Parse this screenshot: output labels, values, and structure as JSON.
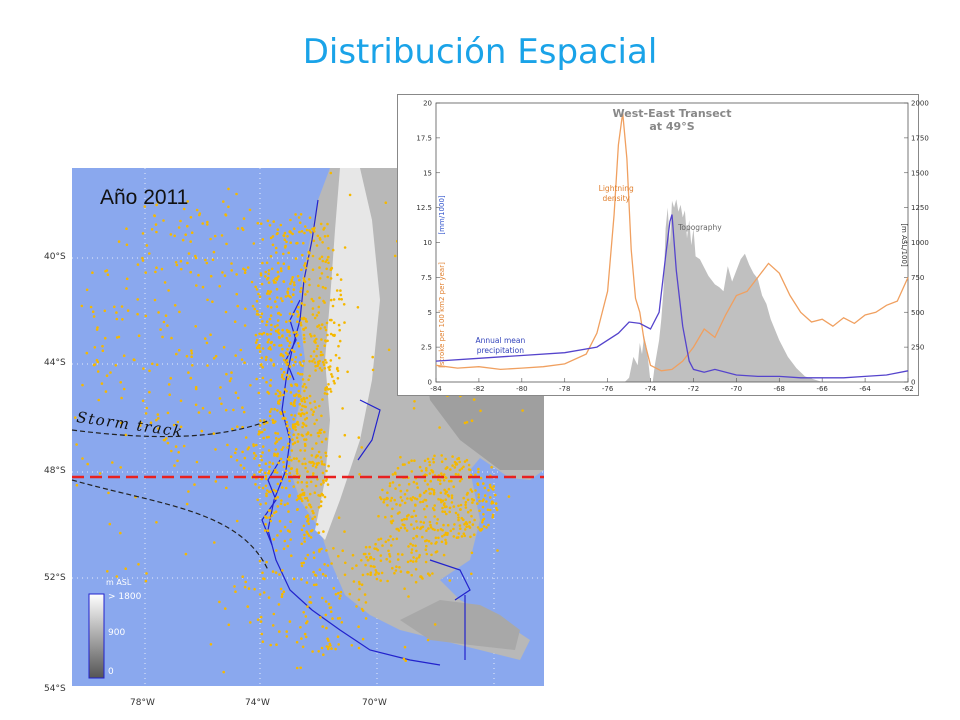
{
  "title": "Distribución Espacial",
  "map": {
    "year_label": "Año 2011",
    "storm_track_label": "Storm track",
    "lat_labels": [
      "40°S",
      "44°S",
      "48°S",
      "52°S",
      "54°S"
    ],
    "lon_labels": [
      "78°W",
      "74°W",
      "70°W"
    ],
    "legend": {
      "unit": "m ASL",
      "ticks": [
        "> 1800",
        "900",
        "0"
      ]
    },
    "colors": {
      "ocean": "#8aa8ee",
      "lightning": "#f5b800",
      "coast": "#2222cc",
      "transect_line": "#e82020"
    }
  },
  "chart_data": {
    "type": "line",
    "title": "West-East Transect at 49°S",
    "title_lines": [
      "West-East Transect",
      "at 49°S"
    ],
    "x_ticks": [
      -84,
      -82,
      -80,
      -78,
      -76,
      -74,
      -72,
      -70,
      -68,
      -66,
      -64,
      -62
    ],
    "xlim": [
      -84,
      -62
    ],
    "y_left": {
      "ylim": [
        0,
        20
      ],
      "ticks": [
        "0",
        "2.5",
        "5",
        "7.5",
        "10",
        "12.5",
        "15",
        "17.5",
        "20"
      ],
      "label_precip": "[mm/1000]",
      "label_lightning": "[stroke per 100 km2 per year]"
    },
    "y_right": {
      "ylim": [
        0,
        2000
      ],
      "ticks": [
        "0",
        "250",
        "500",
        "750",
        "1000",
        "1250",
        "1500",
        "1750",
        "2000"
      ],
      "label": "[m ASL/100]"
    },
    "series": [
      {
        "name": "Lightning density",
        "label_lines": [
          "Lightning",
          "density"
        ],
        "color": "#f0a060",
        "x": [
          -84,
          -83,
          -82,
          -81,
          -80,
          -79,
          -78,
          -77,
          -76.5,
          -76,
          -75.7,
          -75.5,
          -75.3,
          -75.1,
          -74.9,
          -74.7,
          -74.5,
          -74.3,
          -74,
          -73.5,
          -73,
          -72.5,
          -72,
          -71.5,
          -71,
          -70.5,
          -70,
          -69.5,
          -69,
          -68.5,
          -68,
          -67.5,
          -67,
          -66.5,
          -66,
          -65.5,
          -65,
          -64.5,
          -64,
          -63.5,
          -63,
          -62.5,
          -62
        ],
        "y": [
          1.2,
          1.0,
          1.1,
          0.9,
          1.0,
          1.1,
          1.3,
          2.0,
          3.5,
          6.5,
          12.0,
          17.0,
          19.3,
          16.0,
          9.5,
          6.0,
          5.0,
          3.0,
          1.2,
          0.8,
          0.9,
          1.5,
          2.5,
          3.8,
          3.2,
          4.8,
          6.2,
          6.5,
          7.5,
          8.5,
          7.8,
          6.2,
          5.0,
          4.3,
          4.5,
          4.0,
          4.6,
          4.2,
          4.8,
          5.0,
          5.5,
          5.8,
          7.5
        ]
      },
      {
        "name": "Annual mean precipitation",
        "label_lines": [
          "Annual mean",
          "precipitation"
        ],
        "color": "#5544cc",
        "x": [
          -84,
          -82,
          -80,
          -78,
          -76.5,
          -75.5,
          -75,
          -74.5,
          -74,
          -73.6,
          -73.3,
          -73.1,
          -73,
          -72.8,
          -72.5,
          -72.2,
          -72,
          -71.5,
          -71,
          -70,
          -69,
          -68,
          -67,
          -66,
          -65,
          -64,
          -63,
          -62
        ],
        "y": [
          1.5,
          1.7,
          1.9,
          2.1,
          2.5,
          3.5,
          4.3,
          4.2,
          3.8,
          5.0,
          9.0,
          11.5,
          12.0,
          8.0,
          4.0,
          1.5,
          0.9,
          0.7,
          0.9,
          0.5,
          0.4,
          0.4,
          0.3,
          0.3,
          0.3,
          0.4,
          0.5,
          0.8
        ]
      },
      {
        "name": "Topography",
        "type": "area",
        "color": "#c0c0c0",
        "x": [
          -75.2,
          -75,
          -74.8,
          -74.6,
          -74.5,
          -74.4,
          -74.3,
          -74.2,
          -74.1,
          -74,
          -73.9,
          -73.8,
          -73.6,
          -73.5,
          -73.4,
          -73.3,
          -73.2,
          -73.1,
          -73,
          -72.9,
          -72.8,
          -72.7,
          -72.6,
          -72.5,
          -72.4,
          -72.3,
          -72.2,
          -72.1,
          -72,
          -71.9,
          -71.7,
          -71.5,
          -71.3,
          -71,
          -70.8,
          -70.6,
          -70.4,
          -70.2,
          -70,
          -69.8,
          -69.6,
          -69.4,
          -69.2,
          -69,
          -68.8,
          -68.6,
          -68.4,
          -68,
          -67.6,
          -67.2,
          -66.8,
          -66.4,
          -66
        ],
        "y": [
          0,
          30,
          180,
          120,
          280,
          200,
          330,
          260,
          140,
          0,
          0,
          120,
          300,
          450,
          650,
          1100,
          1250,
          980,
          1300,
          1250,
          1310,
          1220,
          1270,
          1180,
          1230,
          1030,
          1160,
          980,
          1100,
          900,
          880,
          820,
          760,
          700,
          680,
          650,
          830,
          720,
          800,
          880,
          920,
          840,
          780,
          740,
          620,
          560,
          450,
          300,
          180,
          100,
          40,
          20,
          0
        ]
      }
    ],
    "annotations": [
      "Topography"
    ]
  }
}
